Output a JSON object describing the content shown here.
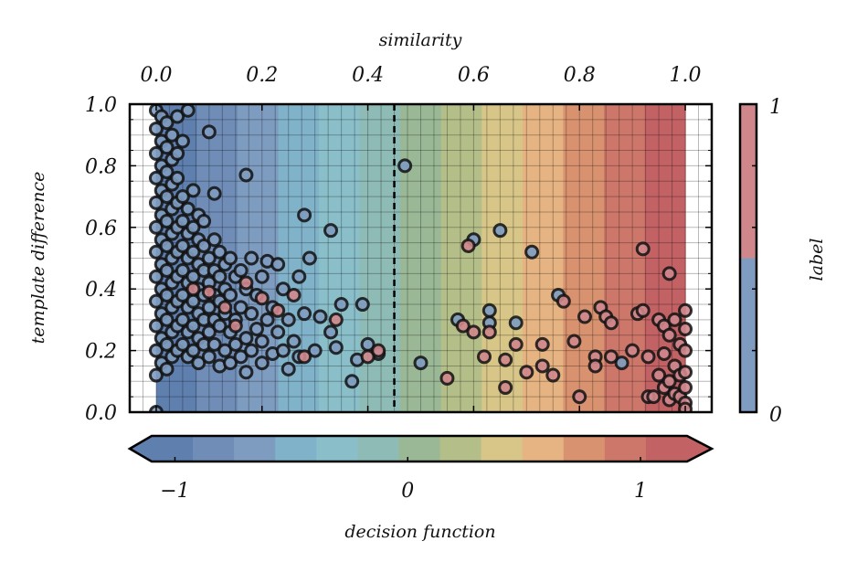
{
  "chart_data": {
    "type": "scatter",
    "xlabel": "similarity",
    "ylabel": "template difference",
    "x_ticks": [
      "0.0",
      "0.2",
      "0.4",
      "0.6",
      "0.8",
      "1.0"
    ],
    "y_ticks": [
      "0.0",
      "0.2",
      "0.4",
      "0.6",
      "0.8",
      "1.0"
    ],
    "xlim": [
      -0.05,
      1.05
    ],
    "ylim": [
      0.0,
      1.0
    ],
    "decision_boundary_x": 0.45,
    "decision_colorbar": {
      "label": "decision function",
      "ticks": [
        "−1",
        "0",
        "1"
      ],
      "range": [
        -1.1,
        1.2
      ],
      "colors": [
        "#5f7fae",
        "#6f8db7",
        "#7d9cc0",
        "#80b2c9",
        "#8abfca",
        "#8ebbb5",
        "#9ab896",
        "#b4be89",
        "#d7c687",
        "#e6b482",
        "#d9926f",
        "#cd776a",
        "#c26264"
      ]
    },
    "label_colorbar": {
      "label": "label",
      "ticks": [
        "0",
        "1"
      ],
      "colors": {
        "0": "#7f9cc0",
        "1": "#cf878c"
      }
    },
    "series": [
      {
        "label": 0,
        "color": "#7f9cc0",
        "points": [
          [
            0.0,
            0.0
          ],
          [
            0.0,
            0.12
          ],
          [
            0.0,
            0.2
          ],
          [
            0.0,
            0.28
          ],
          [
            0.0,
            0.36
          ],
          [
            0.0,
            0.44
          ],
          [
            0.0,
            0.52
          ],
          [
            0.0,
            0.6
          ],
          [
            0.0,
            0.68
          ],
          [
            0.0,
            0.76
          ],
          [
            0.0,
            0.84
          ],
          [
            0.0,
            0.92
          ],
          [
            0.0,
            0.98
          ],
          [
            0.01,
            0.16
          ],
          [
            0.01,
            0.24
          ],
          [
            0.01,
            0.32
          ],
          [
            0.01,
            0.4
          ],
          [
            0.01,
            0.48
          ],
          [
            0.01,
            0.56
          ],
          [
            0.01,
            0.64
          ],
          [
            0.01,
            0.72
          ],
          [
            0.01,
            0.8
          ],
          [
            0.01,
            0.88
          ],
          [
            0.01,
            0.96
          ],
          [
            0.02,
            0.14
          ],
          [
            0.02,
            0.22
          ],
          [
            0.02,
            0.3
          ],
          [
            0.02,
            0.38
          ],
          [
            0.02,
            0.46
          ],
          [
            0.02,
            0.54
          ],
          [
            0.02,
            0.62
          ],
          [
            0.02,
            0.7
          ],
          [
            0.02,
            0.78
          ],
          [
            0.02,
            0.86
          ],
          [
            0.02,
            0.94
          ],
          [
            0.03,
            0.18
          ],
          [
            0.03,
            0.26
          ],
          [
            0.03,
            0.34
          ],
          [
            0.03,
            0.42
          ],
          [
            0.03,
            0.5
          ],
          [
            0.03,
            0.58
          ],
          [
            0.03,
            0.66
          ],
          [
            0.03,
            0.74
          ],
          [
            0.03,
            0.82
          ],
          [
            0.03,
            0.9
          ],
          [
            0.04,
            0.2
          ],
          [
            0.04,
            0.28
          ],
          [
            0.04,
            0.36
          ],
          [
            0.04,
            0.44
          ],
          [
            0.04,
            0.52
          ],
          [
            0.04,
            0.6
          ],
          [
            0.04,
            0.68
          ],
          [
            0.04,
            0.76
          ],
          [
            0.04,
            0.84
          ],
          [
            0.04,
            0.96
          ],
          [
            0.05,
            0.22
          ],
          [
            0.05,
            0.3
          ],
          [
            0.05,
            0.38
          ],
          [
            0.05,
            0.46
          ],
          [
            0.05,
            0.54
          ],
          [
            0.05,
            0.62
          ],
          [
            0.05,
            0.7
          ],
          [
            0.05,
            0.88
          ],
          [
            0.06,
            0.18
          ],
          [
            0.06,
            0.26
          ],
          [
            0.06,
            0.34
          ],
          [
            0.06,
            0.42
          ],
          [
            0.06,
            0.5
          ],
          [
            0.06,
            0.58
          ],
          [
            0.06,
            0.66
          ],
          [
            0.06,
            0.98
          ],
          [
            0.07,
            0.2
          ],
          [
            0.07,
            0.28
          ],
          [
            0.07,
            0.36
          ],
          [
            0.07,
            0.44
          ],
          [
            0.07,
            0.52
          ],
          [
            0.07,
            0.6
          ],
          [
            0.07,
            0.72
          ],
          [
            0.08,
            0.16
          ],
          [
            0.08,
            0.24
          ],
          [
            0.08,
            0.32
          ],
          [
            0.08,
            0.4
          ],
          [
            0.08,
            0.48
          ],
          [
            0.08,
            0.56
          ],
          [
            0.08,
            0.64
          ],
          [
            0.09,
            0.22
          ],
          [
            0.09,
            0.3
          ],
          [
            0.09,
            0.38
          ],
          [
            0.09,
            0.46
          ],
          [
            0.09,
            0.54
          ],
          [
            0.09,
            0.62
          ],
          [
            0.1,
            0.18
          ],
          [
            0.1,
            0.26
          ],
          [
            0.1,
            0.34
          ],
          [
            0.1,
            0.42
          ],
          [
            0.1,
            0.5
          ],
          [
            0.1,
            0.91
          ],
          [
            0.11,
            0.22
          ],
          [
            0.11,
            0.3
          ],
          [
            0.11,
            0.38
          ],
          [
            0.11,
            0.46
          ],
          [
            0.11,
            0.56
          ],
          [
            0.11,
            0.71
          ],
          [
            0.12,
            0.15
          ],
          [
            0.12,
            0.28
          ],
          [
            0.12,
            0.36
          ],
          [
            0.12,
            0.44
          ],
          [
            0.12,
            0.52
          ],
          [
            0.13,
            0.2
          ],
          [
            0.13,
            0.32
          ],
          [
            0.13,
            0.4
          ],
          [
            0.13,
            0.48
          ],
          [
            0.14,
            0.16
          ],
          [
            0.14,
            0.26
          ],
          [
            0.14,
            0.38
          ],
          [
            0.14,
            0.5
          ],
          [
            0.15,
            0.22
          ],
          [
            0.15,
            0.3
          ],
          [
            0.15,
            0.44
          ],
          [
            0.16,
            0.18
          ],
          [
            0.16,
            0.34
          ],
          [
            0.16,
            0.46
          ],
          [
            0.17,
            0.13
          ],
          [
            0.17,
            0.24
          ],
          [
            0.17,
            0.4
          ],
          [
            0.17,
            0.77
          ],
          [
            0.18,
            0.2
          ],
          [
            0.18,
            0.32
          ],
          [
            0.18,
            0.5
          ],
          [
            0.19,
            0.27
          ],
          [
            0.19,
            0.38
          ],
          [
            0.2,
            0.16
          ],
          [
            0.2,
            0.23
          ],
          [
            0.2,
            0.44
          ],
          [
            0.21,
            0.3
          ],
          [
            0.21,
            0.49
          ],
          [
            0.22,
            0.19
          ],
          [
            0.22,
            0.34
          ],
          [
            0.23,
            0.26
          ],
          [
            0.23,
            0.48
          ],
          [
            0.24,
            0.2
          ],
          [
            0.24,
            0.4
          ],
          [
            0.25,
            0.14
          ],
          [
            0.25,
            0.3
          ],
          [
            0.26,
            0.23
          ],
          [
            0.27,
            0.44
          ],
          [
            0.27,
            0.18
          ],
          [
            0.28,
            0.64
          ],
          [
            0.28,
            0.32
          ],
          [
            0.29,
            0.5
          ],
          [
            0.3,
            0.2
          ],
          [
            0.31,
            0.31
          ],
          [
            0.33,
            0.26
          ],
          [
            0.33,
            0.59
          ],
          [
            0.34,
            0.21
          ],
          [
            0.35,
            0.35
          ],
          [
            0.37,
            0.1
          ],
          [
            0.38,
            0.17
          ],
          [
            0.39,
            0.35
          ],
          [
            0.4,
            0.22
          ],
          [
            0.42,
            0.19
          ],
          [
            0.47,
            0.8
          ],
          [
            0.5,
            0.16
          ],
          [
            0.57,
            0.3
          ],
          [
            0.6,
            0.56
          ],
          [
            0.63,
            0.29
          ],
          [
            0.63,
            0.33
          ],
          [
            0.65,
            0.59
          ],
          [
            0.68,
            0.29
          ],
          [
            0.71,
            0.52
          ],
          [
            0.76,
            0.38
          ],
          [
            0.88,
            0.16
          ]
        ]
      },
      {
        "label": 1,
        "color": "#cf878c",
        "points": [
          [
            0.07,
            0.4
          ],
          [
            0.1,
            0.39
          ],
          [
            0.13,
            0.34
          ],
          [
            0.15,
            0.28
          ],
          [
            0.17,
            0.42
          ],
          [
            0.2,
            0.37
          ],
          [
            0.23,
            0.33
          ],
          [
            0.26,
            0.38
          ],
          [
            0.28,
            0.18
          ],
          [
            0.34,
            0.3
          ],
          [
            0.4,
            0.18
          ],
          [
            0.42,
            0.2
          ],
          [
            0.55,
            0.11
          ],
          [
            0.58,
            0.28
          ],
          [
            0.59,
            0.54
          ],
          [
            0.6,
            0.26
          ],
          [
            0.62,
            0.18
          ],
          [
            0.63,
            0.26
          ],
          [
            0.66,
            0.17
          ],
          [
            0.66,
            0.08
          ],
          [
            0.68,
            0.22
          ],
          [
            0.7,
            0.13
          ],
          [
            0.73,
            0.22
          ],
          [
            0.73,
            0.15
          ],
          [
            0.75,
            0.12
          ],
          [
            0.77,
            0.36
          ],
          [
            0.79,
            0.23
          ],
          [
            0.8,
            0.05
          ],
          [
            0.81,
            0.31
          ],
          [
            0.83,
            0.18
          ],
          [
            0.83,
            0.15
          ],
          [
            0.84,
            0.34
          ],
          [
            0.85,
            0.31
          ],
          [
            0.86,
            0.29
          ],
          [
            0.86,
            0.18
          ],
          [
            0.9,
            0.2
          ],
          [
            0.91,
            0.32
          ],
          [
            0.92,
            0.53
          ],
          [
            0.92,
            0.33
          ],
          [
            0.93,
            0.18
          ],
          [
            0.93,
            0.05
          ],
          [
            0.94,
            0.05
          ],
          [
            0.95,
            0.3
          ],
          [
            0.95,
            0.12
          ],
          [
            0.96,
            0.28
          ],
          [
            0.96,
            0.19
          ],
          [
            0.96,
            0.08
          ],
          [
            0.97,
            0.45
          ],
          [
            0.97,
            0.25
          ],
          [
            0.97,
            0.1
          ],
          [
            0.97,
            0.04
          ],
          [
            0.98,
            0.3
          ],
          [
            0.98,
            0.15
          ],
          [
            0.98,
            0.06
          ],
          [
            0.99,
            0.22
          ],
          [
            0.99,
            0.12
          ],
          [
            0.99,
            0.05
          ],
          [
            1.0,
            0.33
          ],
          [
            1.0,
            0.27
          ],
          [
            1.0,
            0.2
          ],
          [
            1.0,
            0.13
          ],
          [
            1.0,
            0.08
          ],
          [
            1.0,
            0.03
          ],
          [
            1.0,
            0.01
          ]
        ]
      }
    ]
  }
}
